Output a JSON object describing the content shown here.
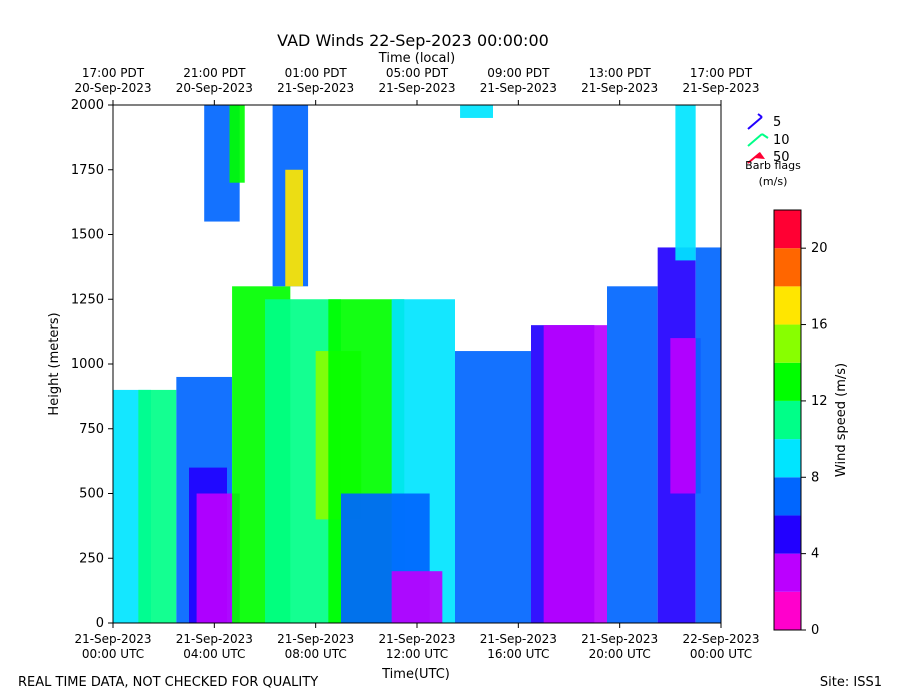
{
  "chart_data": {
    "type": "heatmap",
    "title": "VAD Winds 22-Sep-2023 00:00:00",
    "top_axis_label": "Time (local)",
    "xlabel": "Time(UTC)",
    "ylabel": "Height (meters)",
    "ylim": [
      0,
      2000
    ],
    "y_ticks": [
      0,
      250,
      500,
      750,
      1000,
      1250,
      1500,
      1750,
      2000
    ],
    "xlim_hours": [
      0,
      24
    ],
    "x_ticks": [
      {
        "hour": 0,
        "line1": "21-Sep-2023",
        "line2": "00:00 UTC"
      },
      {
        "hour": 4,
        "line1": "21-Sep-2023",
        "line2": "04:00 UTC"
      },
      {
        "hour": 8,
        "line1": "21-Sep-2023",
        "line2": "08:00 UTC"
      },
      {
        "hour": 12,
        "line1": "21-Sep-2023",
        "line2": "12:00 UTC"
      },
      {
        "hour": 16,
        "line1": "21-Sep-2023",
        "line2": "16:00 UTC"
      },
      {
        "hour": 20,
        "line1": "21-Sep-2023",
        "line2": "20:00 UTC"
      },
      {
        "hour": 24,
        "line1": "22-Sep-2023",
        "line2": "00:00 UTC"
      }
    ],
    "top_ticks": [
      {
        "hour": 0,
        "line1": "17:00 PDT",
        "line2": "20-Sep-2023"
      },
      {
        "hour": 4,
        "line1": "21:00 PDT",
        "line2": "20-Sep-2023"
      },
      {
        "hour": 8,
        "line1": "01:00 PDT",
        "line2": "21-Sep-2023"
      },
      {
        "hour": 12,
        "line1": "05:00 PDT",
        "line2": "21-Sep-2023"
      },
      {
        "hour": 16,
        "line1": "09:00 PDT",
        "line2": "21-Sep-2023"
      },
      {
        "hour": 20,
        "line1": "13:00 PDT",
        "line2": "21-Sep-2023"
      },
      {
        "hour": 24,
        "line1": "17:00 PDT",
        "line2": "21-Sep-2023"
      }
    ],
    "colorbar": {
      "label": "Wind speed (m/s)",
      "range": [
        0,
        22
      ],
      "ticks": [
        0,
        4,
        8,
        12,
        16,
        20
      ],
      "colors": [
        "#ff00cc",
        "#bb00ff",
        "#2200ff",
        "#0066ff",
        "#00e5ff",
        "#00ff88",
        "#00ff00",
        "#88ff00",
        "#ffe600",
        "#ff6600",
        "#ff0033"
      ]
    },
    "barb_legend": {
      "items": [
        {
          "label": "5",
          "color": "#2200ff"
        },
        {
          "label": "10",
          "color": "#00ff88"
        },
        {
          "label": "50",
          "color": "#ff0033"
        }
      ],
      "caption_line1": "Barb flags",
      "caption_line2": "(m/s)"
    },
    "regions": [
      {
        "t": [
          0,
          1.5
        ],
        "h": [
          0,
          900
        ],
        "speed": 8.5
      },
      {
        "t": [
          1.0,
          2.5
        ],
        "h": [
          0,
          900
        ],
        "speed": 11
      },
      {
        "t": [
          2.5,
          4.7
        ],
        "h": [
          0,
          950
        ],
        "speed": 7
      },
      {
        "t": [
          3.0,
          4.5
        ],
        "h": [
          0,
          600
        ],
        "speed": 5
      },
      {
        "t": [
          3.3,
          5.0
        ],
        "h": [
          0,
          500
        ],
        "speed": 2.5
      },
      {
        "t": [
          4.7,
          7.0
        ],
        "h": [
          0,
          1300
        ],
        "speed": 12.5
      },
      {
        "t": [
          6.0,
          9.0
        ],
        "h": [
          0,
          1250
        ],
        "speed": 10.5
      },
      {
        "t": [
          8.0,
          9.8
        ],
        "h": [
          400,
          1050
        ],
        "speed": 14.5
      },
      {
        "t": [
          8.5,
          11.5
        ],
        "h": [
          0,
          1250
        ],
        "speed": 13
      },
      {
        "t": [
          11.0,
          13.5
        ],
        "h": [
          0,
          1250
        ],
        "speed": 9
      },
      {
        "t": [
          9.0,
          12.5
        ],
        "h": [
          0,
          500
        ],
        "speed": 7
      },
      {
        "t": [
          11.0,
          13.0
        ],
        "h": [
          0,
          200
        ],
        "speed": 2.5
      },
      {
        "t": [
          13.5,
          16.5
        ],
        "h": [
          0,
          1050
        ],
        "speed": 6.5
      },
      {
        "t": [
          16.5,
          19.0
        ],
        "h": [
          0,
          1150
        ],
        "speed": 5
      },
      {
        "t": [
          17.0,
          19.5
        ],
        "h": [
          0,
          1150
        ],
        "speed": 3.5
      },
      {
        "t": [
          19.5,
          21.5
        ],
        "h": [
          0,
          1300
        ],
        "speed": 6
      },
      {
        "t": [
          21.5,
          23.0
        ],
        "h": [
          0,
          1450
        ],
        "speed": 5.5
      },
      {
        "t": [
          22.0,
          23.2
        ],
        "h": [
          500,
          1100
        ],
        "speed": 3.5
      },
      {
        "t": [
          23.0,
          24.0
        ],
        "h": [
          0,
          1450
        ],
        "speed": 7
      },
      {
        "t": [
          3.6,
          5.0
        ],
        "h": [
          1550,
          2000
        ],
        "speed": 7
      },
      {
        "t": [
          4.6,
          5.2
        ],
        "h": [
          1700,
          2000
        ],
        "speed": 13
      },
      {
        "t": [
          6.3,
          7.7
        ],
        "h": [
          1300,
          2000
        ],
        "speed": 6.5
      },
      {
        "t": [
          6.8,
          7.5
        ],
        "h": [
          1300,
          1750
        ],
        "speed": 16.5
      },
      {
        "t": [
          13.7,
          15.0
        ],
        "h": [
          1950,
          2000
        ],
        "speed": 8.5
      },
      {
        "t": [
          22.2,
          23.0
        ],
        "h": [
          1400,
          2000
        ],
        "speed": 8.5
      }
    ]
  },
  "footer": {
    "left": "REAL TIME DATA, NOT CHECKED FOR QUALITY",
    "right": "Site: ISS1"
  }
}
